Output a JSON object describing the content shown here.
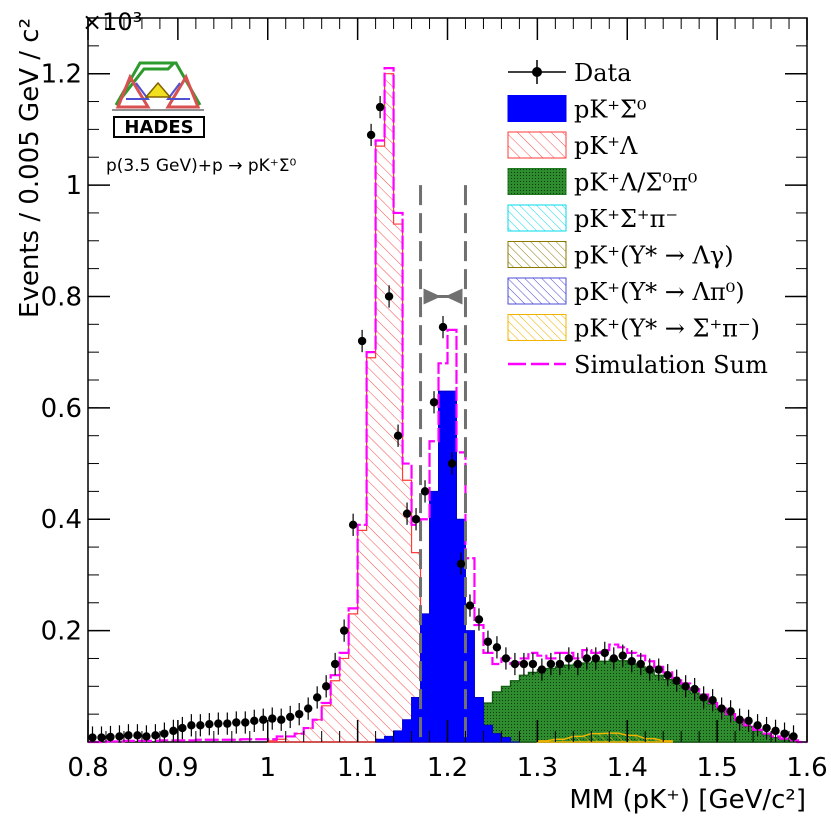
{
  "chart_data": {
    "type": "bar",
    "title": "",
    "xlabel": "MM (pK⁺) [GeV/c²]",
    "ylabel": "Events / 0.005 GeV / c²",
    "y_multiplier": "×10³",
    "xlim": [
      0.8,
      1.6
    ],
    "ylim": [
      0,
      1.3
    ],
    "x_ticks": [
      "0.8",
      "0.9",
      "1",
      "1.1",
      "1.2",
      "1.3",
      "1.4",
      "1.5",
      "1.6"
    ],
    "y_ticks": [
      "0.2",
      "0.4",
      "0.6",
      "0.8",
      "1",
      "1.2"
    ],
    "experiment_logo_text": "HADES",
    "reaction_label": "p(3.5 GeV)+p → pK⁺Σ⁰",
    "grid": false,
    "legend_position": "top-right",
    "legend": [
      {
        "label": "Data",
        "style": "points",
        "color": "#000000"
      },
      {
        "label": "pK⁺Σ⁰",
        "style": "filled",
        "color": "#0000ff"
      },
      {
        "label": "pK⁺Λ",
        "style": "hatched",
        "color": "#ff3b3b"
      },
      {
        "label": "pK⁺Λ/Σ⁰π⁰",
        "style": "dotted-fill",
        "color": "#1e7a1e"
      },
      {
        "label": "pK⁺Σ⁺π⁻",
        "style": "hatched",
        "color": "#00d8e8"
      },
      {
        "label": "pK⁺(Y* → Λγ)",
        "style": "hatched",
        "color": "#8a7a00"
      },
      {
        "label": "pK⁺(Y* → Λπ⁰)",
        "style": "hatched",
        "color": "#4b4bd8"
      },
      {
        "label": "pK⁺(Y* → Σ⁺π⁻)",
        "style": "hatched",
        "color": "#f0b400"
      },
      {
        "label": "Simulation Sum",
        "style": "dashed-line",
        "color": "#ff00ff"
      }
    ],
    "selection_window": {
      "x_min": 1.17,
      "x_max": 1.22,
      "color": "#707070"
    },
    "series": [
      {
        "name": "Data",
        "x": [
          0.805,
          0.815,
          0.825,
          0.835,
          0.845,
          0.855,
          0.865,
          0.875,
          0.885,
          0.895,
          0.905,
          0.915,
          0.925,
          0.935,
          0.945,
          0.955,
          0.965,
          0.975,
          0.985,
          0.995,
          1.005,
          1.015,
          1.025,
          1.035,
          1.045,
          1.055,
          1.065,
          1.075,
          1.085,
          1.095,
          1.105,
          1.115,
          1.125,
          1.135,
          1.145,
          1.155,
          1.165,
          1.175,
          1.185,
          1.195,
          1.205,
          1.215,
          1.225,
          1.235,
          1.245,
          1.255,
          1.265,
          1.275,
          1.285,
          1.295,
          1.305,
          1.315,
          1.325,
          1.335,
          1.345,
          1.355,
          1.365,
          1.375,
          1.385,
          1.395,
          1.405,
          1.415,
          1.425,
          1.435,
          1.445,
          1.455,
          1.465,
          1.475,
          1.485,
          1.495,
          1.505,
          1.515,
          1.525,
          1.535,
          1.545,
          1.555,
          1.565,
          1.575,
          1.585
        ],
        "y": [
          0.008,
          0.008,
          0.009,
          0.01,
          0.012,
          0.012,
          0.01,
          0.012,
          0.015,
          0.02,
          0.025,
          0.03,
          0.03,
          0.032,
          0.033,
          0.033,
          0.035,
          0.035,
          0.038,
          0.04,
          0.042,
          0.04,
          0.045,
          0.05,
          0.06,
          0.08,
          0.1,
          0.14,
          0.2,
          0.39,
          0.72,
          1.09,
          1.14,
          0.8,
          0.55,
          0.41,
          0.4,
          0.45,
          0.61,
          0.745,
          0.5,
          0.32,
          0.245,
          0.22,
          0.18,
          0.17,
          0.15,
          0.14,
          0.14,
          0.14,
          0.13,
          0.14,
          0.14,
          0.15,
          0.14,
          0.15,
          0.15,
          0.16,
          0.15,
          0.155,
          0.145,
          0.14,
          0.13,
          0.13,
          0.12,
          0.11,
          0.1,
          0.095,
          0.08,
          0.075,
          0.06,
          0.055,
          0.04,
          0.038,
          0.03,
          0.025,
          0.02,
          0.015,
          0.01
        ],
        "error": 0.02
      },
      {
        "name": "Simulation Sum",
        "x": [
          0.8,
          0.81,
          0.82,
          0.83,
          0.84,
          0.85,
          0.86,
          0.87,
          0.88,
          0.89,
          0.9,
          0.91,
          0.92,
          0.93,
          0.94,
          0.95,
          0.96,
          0.97,
          0.98,
          0.99,
          1.0,
          1.01,
          1.02,
          1.03,
          1.04,
          1.05,
          1.06,
          1.07,
          1.08,
          1.09,
          1.1,
          1.11,
          1.12,
          1.13,
          1.14,
          1.15,
          1.16,
          1.17,
          1.18,
          1.19,
          1.2,
          1.21,
          1.22,
          1.23,
          1.24,
          1.25,
          1.26,
          1.27,
          1.28,
          1.29,
          1.3,
          1.31,
          1.32,
          1.33,
          1.34,
          1.35,
          1.36,
          1.37,
          1.38,
          1.39,
          1.4,
          1.41,
          1.42,
          1.43,
          1.44,
          1.45,
          1.46,
          1.47,
          1.48,
          1.49,
          1.5,
          1.51,
          1.52,
          1.53,
          1.54,
          1.55,
          1.56,
          1.57,
          1.58,
          1.59
        ],
        "y": [
          0.0,
          0.0,
          0.001,
          0.001,
          0.002,
          0.002,
          0.002,
          0.002,
          0.003,
          0.003,
          0.003,
          0.003,
          0.004,
          0.004,
          0.004,
          0.004,
          0.004,
          0.005,
          0.005,
          0.005,
          0.005,
          0.01,
          0.01,
          0.015,
          0.025,
          0.04,
          0.07,
          0.12,
          0.16,
          0.24,
          0.39,
          0.7,
          1.08,
          1.21,
          0.95,
          0.5,
          0.39,
          0.4,
          0.54,
          0.68,
          0.74,
          0.52,
          0.33,
          0.21,
          0.16,
          0.14,
          0.15,
          0.14,
          0.15,
          0.16,
          0.155,
          0.15,
          0.16,
          0.16,
          0.15,
          0.165,
          0.16,
          0.165,
          0.175,
          0.17,
          0.16,
          0.155,
          0.145,
          0.135,
          0.125,
          0.115,
          0.105,
          0.095,
          0.085,
          0.07,
          0.06,
          0.05,
          0.04,
          0.03,
          0.022,
          0.015,
          0.01,
          0.006,
          0.003,
          0.0
        ]
      },
      {
        "name": "pK⁺Λ",
        "x": [
          1.0,
          1.01,
          1.02,
          1.03,
          1.04,
          1.05,
          1.06,
          1.07,
          1.08,
          1.09,
          1.1,
          1.11,
          1.12,
          1.13,
          1.14,
          1.15,
          1.16,
          1.17,
          1.18,
          1.19,
          1.2,
          1.21,
          1.22,
          1.23,
          1.24
        ],
        "y": [
          0.002,
          0.005,
          0.01,
          0.015,
          0.025,
          0.04,
          0.065,
          0.11,
          0.15,
          0.23,
          0.38,
          0.69,
          1.07,
          1.2,
          0.93,
          0.47,
          0.34,
          0.12,
          0.06,
          0.04,
          0.03,
          0.02,
          0.012,
          0.006,
          0.002
        ]
      },
      {
        "name": "pK⁺Σ⁰",
        "x": [
          1.12,
          1.13,
          1.14,
          1.15,
          1.16,
          1.17,
          1.18,
          1.19,
          1.2,
          1.21,
          1.22,
          1.23,
          1.24,
          1.25,
          1.26,
          1.27
        ],
        "y": [
          0.005,
          0.01,
          0.02,
          0.04,
          0.08,
          0.23,
          0.45,
          0.63,
          0.63,
          0.4,
          0.2,
          0.08,
          0.03,
          0.015,
          0.008,
          0.0
        ]
      },
      {
        "name": "pK⁺Λ/Σ⁰π⁰",
        "x": [
          1.2,
          1.21,
          1.22,
          1.23,
          1.24,
          1.25,
          1.26,
          1.27,
          1.28,
          1.29,
          1.3,
          1.31,
          1.32,
          1.33,
          1.34,
          1.35,
          1.36,
          1.37,
          1.38,
          1.39,
          1.4,
          1.41,
          1.42,
          1.43,
          1.44,
          1.45,
          1.46,
          1.47,
          1.48,
          1.49,
          1.5,
          1.51,
          1.52,
          1.53,
          1.54,
          1.55,
          1.56,
          1.57,
          1.58,
          1.59
        ],
        "y": [
          0.002,
          0.008,
          0.02,
          0.045,
          0.07,
          0.09,
          0.1,
          0.11,
          0.12,
          0.125,
          0.13,
          0.132,
          0.135,
          0.138,
          0.14,
          0.142,
          0.145,
          0.145,
          0.148,
          0.146,
          0.14,
          0.135,
          0.128,
          0.12,
          0.112,
          0.105,
          0.097,
          0.088,
          0.078,
          0.068,
          0.058,
          0.048,
          0.038,
          0.028,
          0.02,
          0.013,
          0.008,
          0.004,
          0.002,
          0.0
        ]
      },
      {
        "name": "pK⁺(Y* → Σ⁺π⁻)",
        "x": [
          1.3,
          1.32,
          1.34,
          1.36,
          1.38,
          1.4,
          1.42,
          1.44
        ],
        "y": [
          0.002,
          0.005,
          0.01,
          0.015,
          0.016,
          0.012,
          0.006,
          0.002
        ]
      }
    ]
  }
}
